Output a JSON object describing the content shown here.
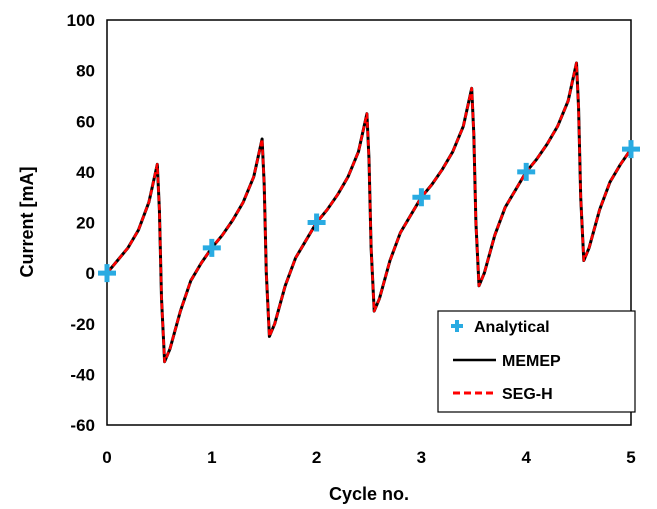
{
  "chart_data": {
    "type": "line",
    "title": "",
    "xlabel": "Cycle no.",
    "ylabel": "Current [mA]",
    "xlim": [
      0,
      5
    ],
    "ylim": [
      -60,
      100
    ],
    "x_ticks": [
      "0",
      "1",
      "2",
      "3",
      "4",
      "5"
    ],
    "y_ticks": [
      "-60",
      "-40",
      "-20",
      "0",
      "20",
      "40",
      "60",
      "80",
      "100"
    ],
    "grid": true,
    "legend_position": "bottom-right",
    "series": [
      {
        "name": "Analytical",
        "style": "markers",
        "marker": "plus",
        "color": "#29abe2",
        "x": [
          0,
          1,
          2,
          3,
          4,
          5
        ],
        "y": [
          0,
          10,
          20,
          30,
          40,
          49
        ]
      },
      {
        "name": "MEMEP",
        "style": "solid",
        "color": "#000000",
        "x": [
          0,
          0.1,
          0.2,
          0.3,
          0.4,
          0.48,
          0.5,
          0.52,
          0.55,
          0.6,
          0.7,
          0.8,
          0.9,
          1.0,
          1.1,
          1.2,
          1.3,
          1.4,
          1.48,
          1.5,
          1.52,
          1.55,
          1.6,
          1.7,
          1.8,
          1.9,
          2.0,
          2.1,
          2.2,
          2.3,
          2.4,
          2.48,
          2.5,
          2.52,
          2.55,
          2.6,
          2.7,
          2.8,
          2.9,
          3.0,
          3.1,
          3.2,
          3.3,
          3.4,
          3.48,
          3.5,
          3.52,
          3.55,
          3.6,
          3.7,
          3.8,
          3.9,
          4.0,
          4.1,
          4.2,
          4.3,
          4.4,
          4.48,
          4.5,
          4.52,
          4.55,
          4.6,
          4.7,
          4.8,
          4.9,
          5.0
        ],
        "y": [
          0,
          5,
          10,
          17,
          28,
          43,
          25,
          -10,
          -35,
          -30,
          -15,
          -3,
          4,
          10,
          15,
          21,
          28,
          38,
          53,
          35,
          0,
          -25,
          -20,
          -5,
          6,
          13,
          20,
          25,
          31,
          38,
          48,
          63,
          45,
          10,
          -15,
          -10,
          5,
          16,
          23,
          30,
          35,
          41,
          48,
          58,
          73,
          55,
          20,
          -5,
          0,
          15,
          26,
          33,
          40,
          45,
          51,
          58,
          68,
          83,
          65,
          30,
          5,
          10,
          25,
          36,
          43,
          49
        ]
      },
      {
        "name": "SEG-H",
        "style": "dashed",
        "color": "#ff0000",
        "x": [
          0,
          0.1,
          0.2,
          0.3,
          0.4,
          0.48,
          0.5,
          0.52,
          0.55,
          0.6,
          0.7,
          0.8,
          0.9,
          1.0,
          1.1,
          1.2,
          1.3,
          1.4,
          1.48,
          1.5,
          1.52,
          1.55,
          1.6,
          1.7,
          1.8,
          1.9,
          2.0,
          2.1,
          2.2,
          2.3,
          2.4,
          2.48,
          2.5,
          2.52,
          2.55,
          2.6,
          2.7,
          2.8,
          2.9,
          3.0,
          3.1,
          3.2,
          3.3,
          3.4,
          3.48,
          3.5,
          3.52,
          3.55,
          3.6,
          3.7,
          3.8,
          3.9,
          4.0,
          4.1,
          4.2,
          4.3,
          4.4,
          4.48,
          4.5,
          4.52,
          4.55,
          4.6,
          4.7,
          4.8,
          4.9,
          5.0
        ],
        "y": [
          0,
          5,
          10,
          17,
          28,
          43,
          25,
          -10,
          -35,
          -30,
          -15,
          -3,
          4,
          10,
          15,
          21,
          28,
          38,
          53,
          35,
          0,
          -25,
          -20,
          -5,
          6,
          13,
          20,
          25,
          31,
          38,
          48,
          63,
          45,
          10,
          -15,
          -10,
          5,
          16,
          23,
          30,
          35,
          41,
          48,
          58,
          73,
          55,
          20,
          -5,
          0,
          15,
          26,
          33,
          40,
          45,
          51,
          58,
          68,
          83,
          65,
          30,
          5,
          10,
          25,
          36,
          43,
          49
        ]
      }
    ]
  }
}
